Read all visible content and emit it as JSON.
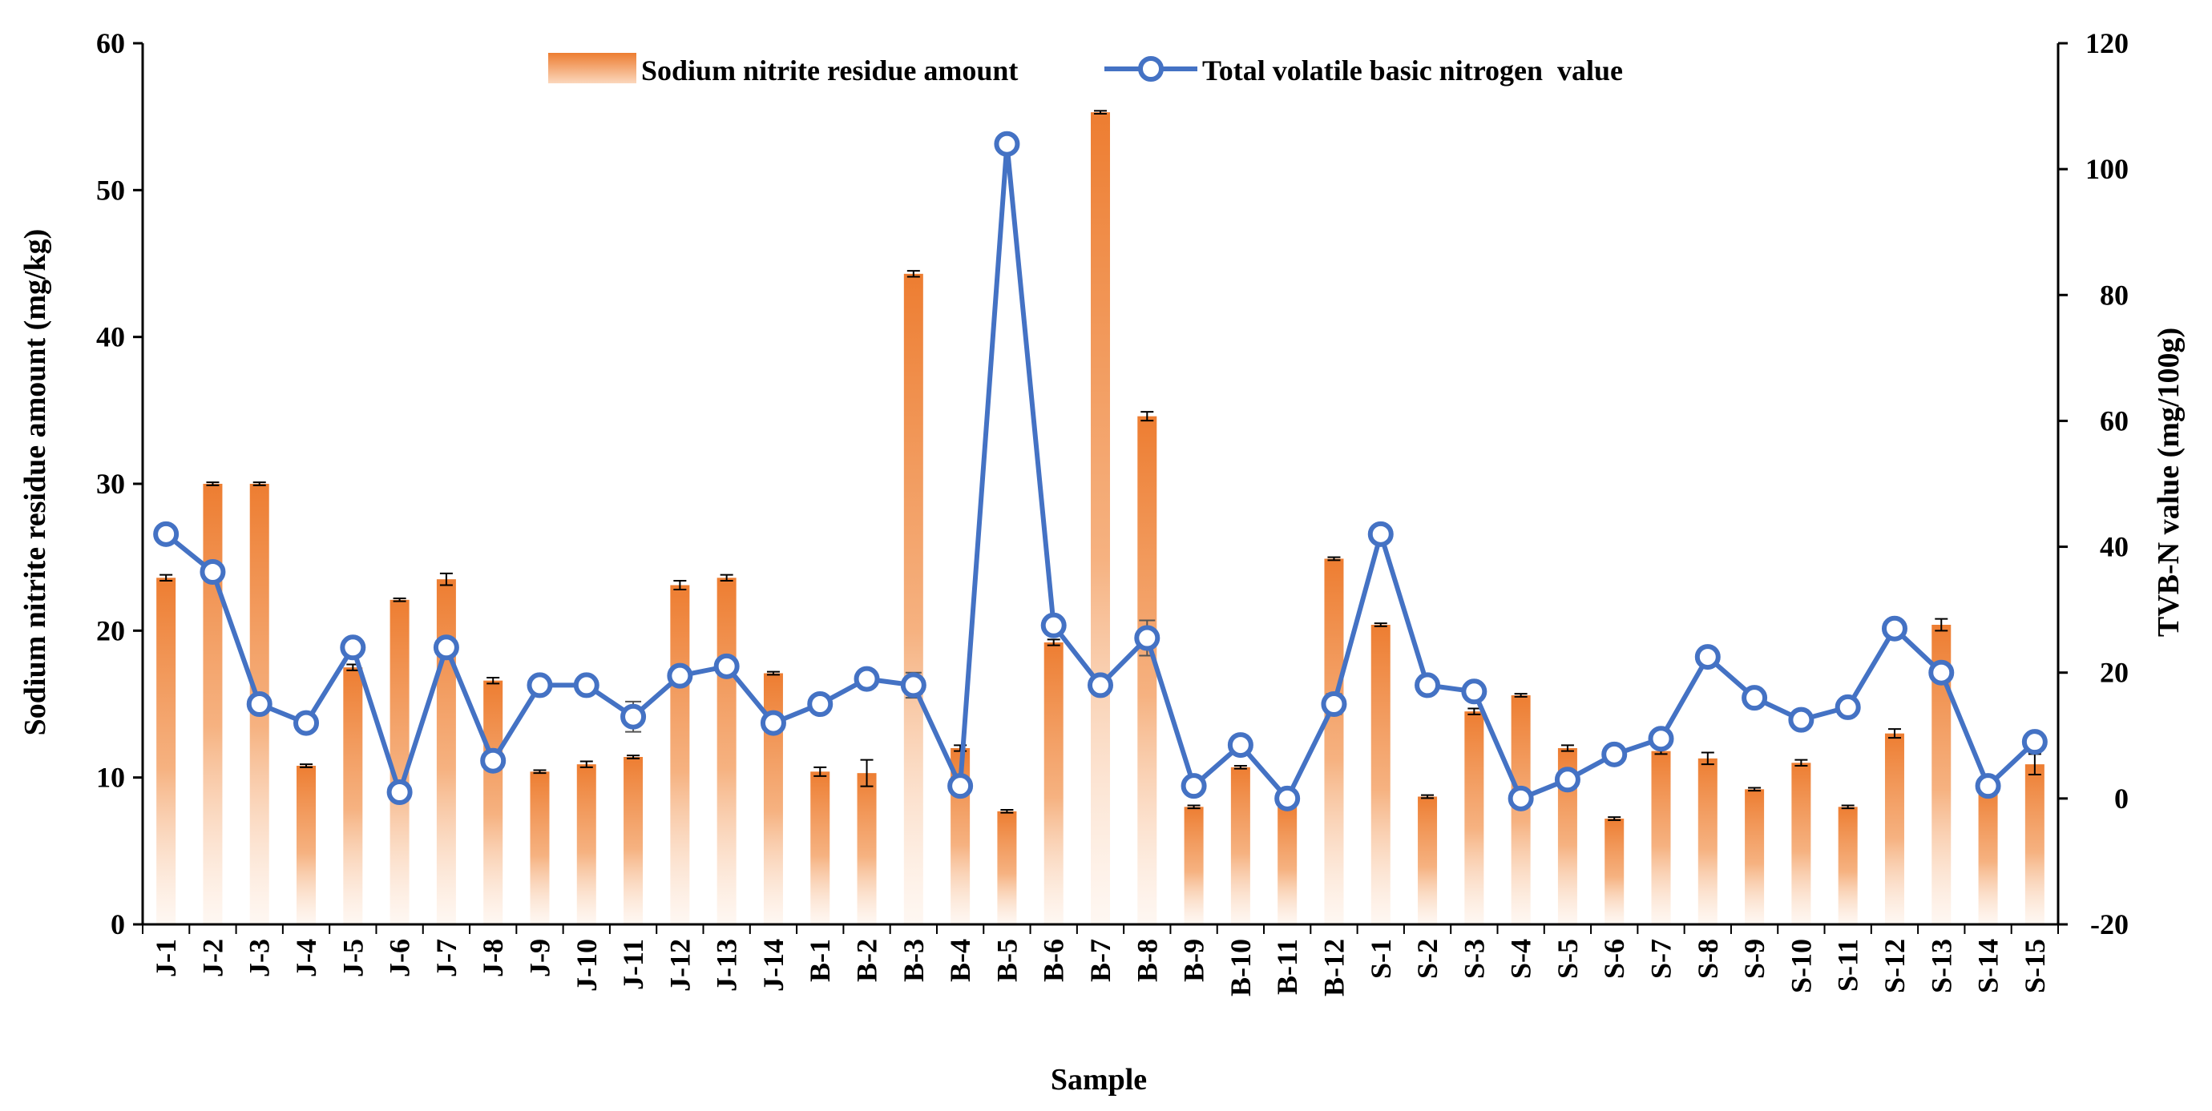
{
  "chart_data": {
    "type": "bar",
    "categories": [
      "J-1",
      "J-2",
      "J-3",
      "J-4",
      "J-5",
      "J-6",
      "J-7",
      "J-8",
      "J-9",
      "J-10",
      "J-11",
      "J-12",
      "J-13",
      "J-14",
      "B-1",
      "B-2",
      "B-3",
      "B-4",
      "B-5",
      "B-6",
      "B-7",
      "B-8",
      "B-9",
      "B-10",
      "B-11",
      "B-12",
      "S-1",
      "S-2",
      "S-3",
      "S-4",
      "S-5",
      "S-6",
      "S-7",
      "S-8",
      "S-9",
      "S-10",
      "S-11",
      "S-12",
      "S-13",
      "S-14",
      "S-15"
    ],
    "xlabel": "Sample",
    "ylabel": "Sodium nitrite residue amount (mg/kg)",
    "y2label": "TVB-N value (mg/100g)",
    "ylim": [
      0,
      60
    ],
    "y2lim": [
      -20,
      120
    ],
    "yticks": [
      "0",
      "10",
      "20",
      "30",
      "40",
      "50",
      "60"
    ],
    "y2ticks": [
      "-20",
      "0",
      "20",
      "40",
      "60",
      "80",
      "100",
      "120"
    ],
    "legend_position": "top-center",
    "grid": false,
    "series": [
      {
        "name": "Sodium nitrite residue amount",
        "type": "bar",
        "axis": "left",
        "color": "#ED7D31",
        "values": [
          23.6,
          30.0,
          30.0,
          10.8,
          17.5,
          22.1,
          23.5,
          16.6,
          10.4,
          10.9,
          11.4,
          23.1,
          23.6,
          17.1,
          10.4,
          10.3,
          44.3,
          12.0,
          7.7,
          19.2,
          55.3,
          34.6,
          8.0,
          10.7,
          8.3,
          24.9,
          20.4,
          8.7,
          14.5,
          15.6,
          12.0,
          7.2,
          11.8,
          11.3,
          9.2,
          11.0,
          8.0,
          13.0,
          20.4,
          9.5,
          10.9
        ],
        "errors": [
          0.2,
          0.1,
          0.1,
          0.1,
          0.2,
          0.1,
          0.4,
          0.2,
          0.1,
          0.2,
          0.1,
          0.3,
          0.2,
          0.1,
          0.3,
          0.9,
          0.2,
          0.2,
          0.1,
          0.2,
          0.1,
          0.3,
          0.1,
          0.1,
          0.1,
          0.1,
          0.1,
          0.1,
          0.2,
          0.1,
          0.2,
          0.1,
          0.2,
          0.4,
          0.1,
          0.2,
          0.1,
          0.3,
          0.4,
          0.1,
          0.7
        ]
      },
      {
        "name": "Total volatile basic nitrogen  value",
        "type": "line",
        "axis": "right",
        "color": "#4472C4",
        "values": [
          42,
          36,
          15,
          12,
          24,
          1,
          24,
          6,
          18,
          18,
          13,
          19.5,
          21,
          12,
          15,
          19,
          18,
          2,
          104,
          27.5,
          18,
          25.5,
          2,
          8.5,
          0,
          15,
          42,
          18,
          17,
          0,
          3,
          7,
          9.5,
          22.5,
          16,
          12.5,
          14.5,
          27,
          20,
          2,
          9
        ],
        "errors": [
          0,
          0,
          0,
          0,
          0,
          0,
          0,
          0,
          0,
          0,
          2.4,
          0,
          0,
          0,
          0,
          0,
          2.0,
          0,
          0,
          0,
          0,
          2.8,
          0,
          0,
          0,
          1.6,
          0,
          0,
          0,
          0,
          0,
          0,
          0,
          0,
          0,
          0,
          0,
          0,
          0,
          0,
          0
        ]
      }
    ]
  }
}
